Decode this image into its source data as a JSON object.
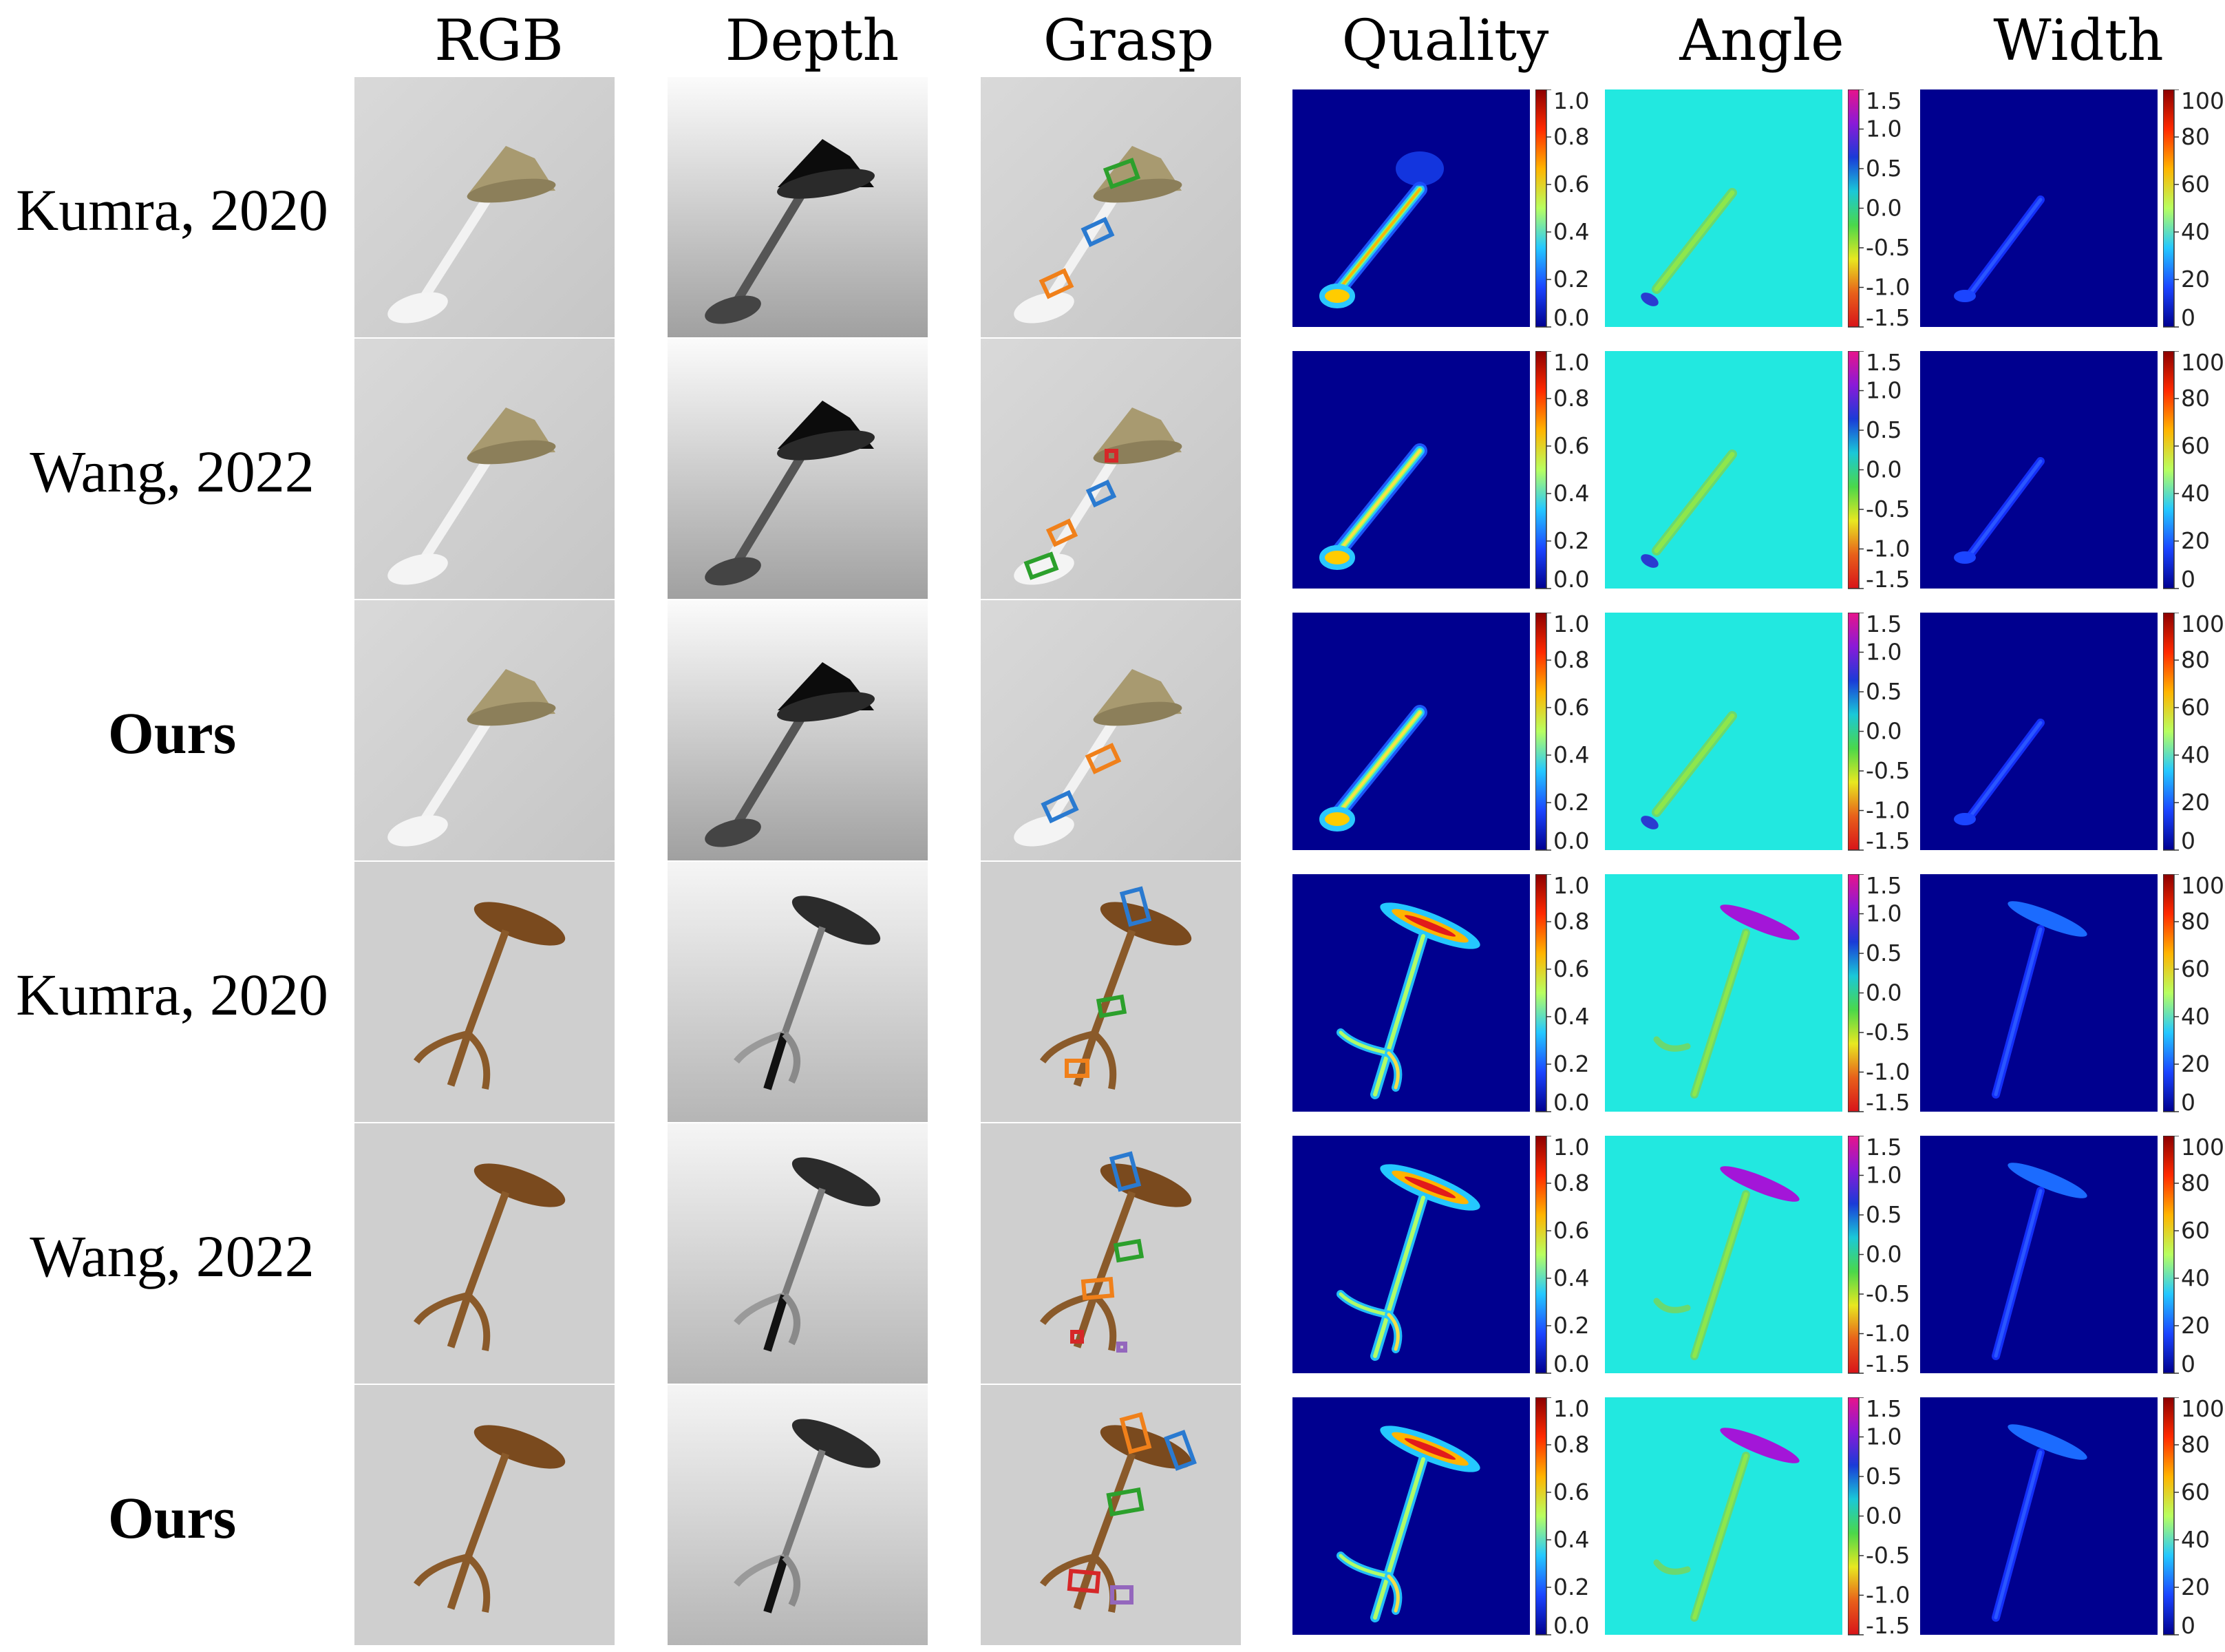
{
  "columns": [
    "RGB",
    "Depth",
    "Grasp",
    "Quality",
    "Angle",
    "Width"
  ],
  "rows": [
    {
      "label": "Kumra, 2020",
      "bold": false,
      "object": "lamp"
    },
    {
      "label": "Wang, 2022",
      "bold": false,
      "object": "lamp"
    },
    {
      "label": "Ours",
      "bold": true,
      "object": "lamp"
    },
    {
      "label": "Kumra, 2020",
      "bold": false,
      "object": "table"
    },
    {
      "label": "Wang, 2022",
      "bold": false,
      "object": "table"
    },
    {
      "label": "Ours",
      "bold": true,
      "object": "table"
    }
  ],
  "colorbars": {
    "quality": [
      "1.0",
      "0.8",
      "0.6",
      "0.4",
      "0.2",
      "0.0"
    ],
    "angle": [
      "1.5",
      "1.0",
      "0.5",
      "0.0",
      "-0.5",
      "-1.0",
      "-1.5"
    ],
    "width": [
      "100",
      "80",
      "60",
      "40",
      "20",
      "0"
    ]
  },
  "colors": {
    "quality_background": "#00008f",
    "angle_background": "#22e8e0",
    "width_background": "#00008f",
    "lamp_shade": "#a89a70",
    "table_wood": "#7a4a1e",
    "grasp_orange": "#f0801a",
    "grasp_blue": "#2a7ad0",
    "grasp_green": "#2ca02c",
    "grasp_red": "#d62728",
    "grasp_purple": "#9467bd"
  }
}
